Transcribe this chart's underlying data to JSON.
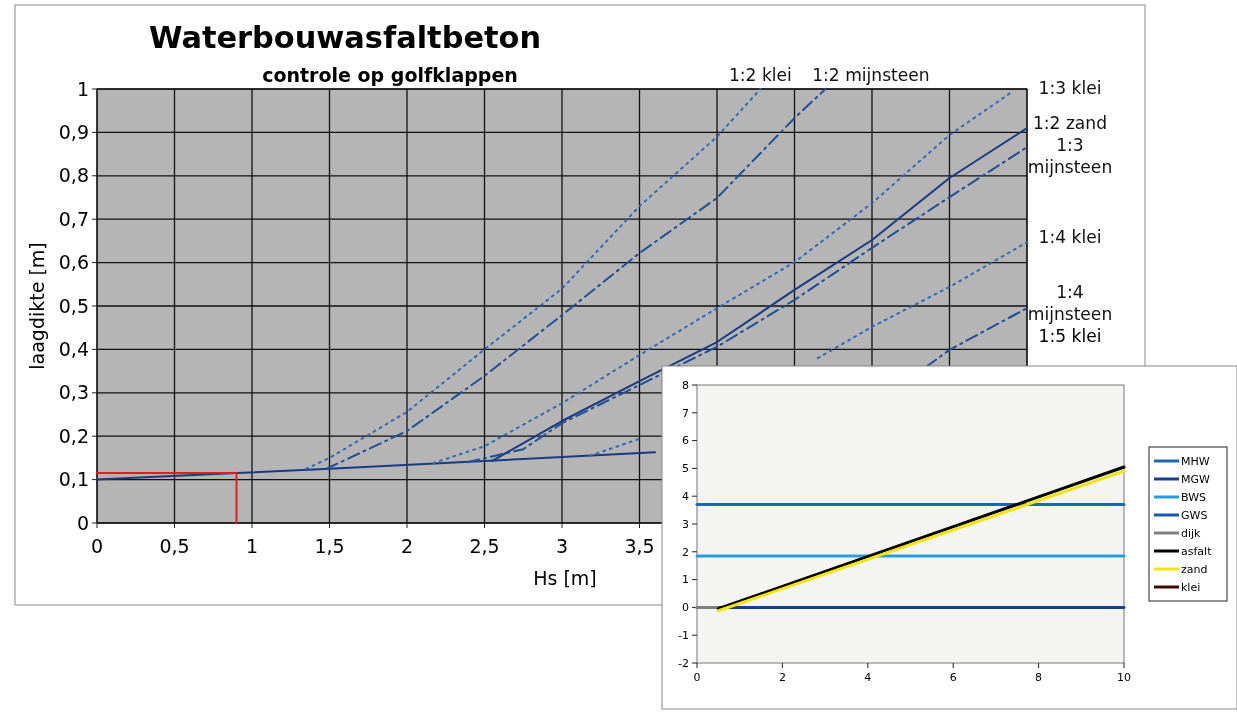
{
  "chart_data": [
    {
      "type": "line",
      "title": "Waterbouwasfaltbeton",
      "subtitle": "controle op golfklappen",
      "xlabel": "Hs [m]",
      "ylabel": "laagdikte [m]",
      "xlim": [
        0,
        6
      ],
      "xticks": [
        0,
        {
          "value": 0.5,
          "label": "0,5"
        },
        1,
        {
          "value": 1.5,
          "label": "1,5"
        },
        2,
        {
          "value": 2.5,
          "label": "2,5"
        },
        3,
        {
          "value": 3.5,
          "label": "3,5"
        },
        {
          "value": 4,
          "label": null
        },
        {
          "value": 4.5,
          "label": null
        },
        {
          "value": 5,
          "label": null
        },
        {
          "value": 5.5,
          "label": null
        },
        {
          "value": 6,
          "label": null
        }
      ],
      "ylim": [
        0,
        1
      ],
      "yticks": [
        0,
        {
          "value": 0.1,
          "label": "0,1"
        },
        {
          "value": 0.2,
          "label": "0,2"
        },
        {
          "value": 0.3,
          "label": "0,3"
        },
        {
          "value": 0.4,
          "label": "0,4"
        },
        {
          "value": 0.5,
          "label": "0,5"
        },
        {
          "value": 0.6,
          "label": "0,6"
        },
        {
          "value": 0.7,
          "label": "0,7"
        },
        {
          "value": 0.8,
          "label": "0,8"
        },
        {
          "value": 0.9,
          "label": "0,9"
        },
        1
      ],
      "grid": true,
      "legend": false,
      "series": [
        {
          "color": "#1a3a80",
          "line_style": "solid",
          "x": [
            0,
            0.9,
            1.5,
            2.5,
            3.6
          ],
          "values": [
            0.1,
            0.115,
            0.125,
            0.143,
            0.163
          ]
        },
        {
          "color": "#e02020",
          "line_style": "solid",
          "x": [
            0,
            0.9,
            0.9
          ],
          "values": [
            0.115,
            0.115,
            0
          ]
        },
        {
          "name": "1:2 klei",
          "color": "#2e6ab8",
          "line_style": "dotted",
          "x": [
            1.35,
            1.5,
            2,
            2.5,
            3,
            3.5,
            4,
            4.28
          ],
          "values": [
            0.125,
            0.15,
            0.256,
            0.4,
            0.54,
            0.73,
            0.89,
            1
          ]
        },
        {
          "name": "1:2 mijnsteen",
          "color": "#1f4f96",
          "line_style": "dashed",
          "x": [
            1.48,
            2,
            2.5,
            3,
            3.5,
            4,
            4.5,
            4.7
          ],
          "values": [
            0.125,
            0.212,
            0.339,
            0.479,
            0.622,
            0.749,
            0.933,
            1
          ]
        },
        {
          "name": "1:3 klei",
          "color": "#2e6ab8",
          "line_style": "dotted",
          "x": [
            2.17,
            2.5,
            3,
            3.5,
            4,
            4.5,
            5,
            5.5,
            5.89
          ],
          "values": [
            0.138,
            0.177,
            0.276,
            0.387,
            0.495,
            0.601,
            0.737,
            0.894,
            0.99
          ]
        },
        {
          "name": "1:2 zand",
          "color": "#1a3a80",
          "line_style": "solid",
          "x": [
            2.55,
            3,
            3.5,
            4,
            4.5,
            5,
            5.5,
            6
          ],
          "values": [
            0.143,
            0.235,
            0.327,
            0.417,
            0.537,
            0.652,
            0.795,
            0.91
          ]
        },
        {
          "name": "1:3 mijnsteen",
          "color": "#1f4f96",
          "line_style": "dashed",
          "x": [
            2.39,
            2.75,
            3,
            3.5,
            4,
            4.5,
            5,
            5.5,
            6
          ],
          "values": [
            0.14,
            0.17,
            0.23,
            0.318,
            0.406,
            0.514,
            0.634,
            0.751,
            0.866
          ]
        },
        {
          "name": "1:4 klei",
          "color": "#2e6ab8",
          "line_style": "dotted",
          "x": [
            3.18,
            3.5,
            4,
            4.65,
            5,
            5.5,
            6
          ],
          "values": [
            0.155,
            0.194,
            null,
            0.38,
            0.452,
            0.544,
            0.647
          ]
        },
        {
          "name": "1:4 mijnsteen",
          "color": "#1f4f96",
          "line_style": "dashed",
          "x": [
            5.35,
            5.5,
            6
          ],
          "values": [
            0.36,
            0.399,
            0.495
          ]
        }
      ],
      "annotations": [
        "1:5 klei"
      ]
    },
    {
      "type": "line",
      "xlim": [
        0,
        10
      ],
      "xticks": [
        0,
        2,
        4,
        6,
        8,
        10
      ],
      "ylim": [
        -2,
        8
      ],
      "yticks": [
        -2,
        -1,
        0,
        1,
        2,
        3,
        4,
        5,
        6,
        7,
        8
      ],
      "grid": false,
      "legend": "right",
      "series": [
        {
          "name": "MHW",
          "color": "#1e66b4",
          "line_style": "solid",
          "x": [
            0,
            10
          ],
          "values": [
            3.7,
            3.7
          ]
        },
        {
          "name": "MGW",
          "color": "#16418e",
          "line_style": "solid",
          "x": [
            0,
            10
          ],
          "values": [
            0,
            0
          ]
        },
        {
          "name": "BWS",
          "color": "#2a9be0",
          "line_style": "solid",
          "x": [
            0,
            10
          ],
          "values": [
            1.85,
            1.85
          ]
        },
        {
          "name": "GWS",
          "color": "#1a5aaa",
          "line_style": "solid"
        },
        {
          "name": "dijk",
          "color": "#808080",
          "line_style": "solid",
          "x": [
            0,
            0.5
          ],
          "values": [
            0,
            0
          ]
        },
        {
          "name": "asfalt",
          "color": "#000000",
          "line_style": "solid",
          "x": [
            0.5,
            10
          ],
          "values": [
            -0.05,
            5.05
          ]
        },
        {
          "name": "zand",
          "color": "#f2e40c",
          "line_style": "solid",
          "x": [
            0.5,
            10
          ],
          "values": [
            -0.12,
            4.9
          ]
        },
        {
          "name": "klei",
          "color": "#3a0a05",
          "line_style": "solid"
        }
      ]
    }
  ]
}
